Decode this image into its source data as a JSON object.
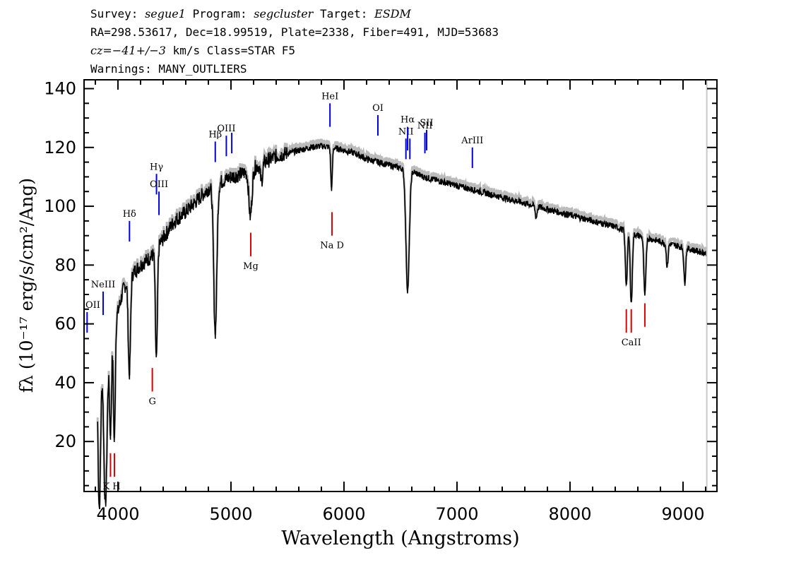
{
  "header": {
    "line1": {
      "survey_label": "Survey: ",
      "survey": "segue1",
      "program_label": " Program: ",
      "program": "segcluster",
      "target_label": " Target: ",
      "target": "ESDM"
    },
    "line2": "RA=298.53617, Dec=18.99519, Plate=2338, Fiber=491, MJD=53683",
    "line3": {
      "cz": "cz=−41+/−3",
      "rest": " km/s Class=STAR F5"
    },
    "line4": "Warnings: MANY_OUTLIERS"
  },
  "chart_data": {
    "type": "line",
    "xlabel": "Wavelength (Angstroms)",
    "ylabel": "fλ (10⁻¹⁷ erg/s/cm²/Ang)",
    "xlim": [
      3700,
      9300
    ],
    "ylim": [
      3,
      143
    ],
    "x_ticks": [
      4000,
      5000,
      6000,
      7000,
      8000,
      9000
    ],
    "y_ticks": [
      20,
      40,
      60,
      80,
      100,
      120,
      140
    ],
    "colors": {
      "spectrum": "#000000",
      "error": "#bbbbbb",
      "emission": "#0000dd",
      "absorption": "#dd0000"
    },
    "continuum": [
      [
        3820,
        52
      ],
      [
        3900,
        55
      ],
      [
        3950,
        58
      ],
      [
        4000,
        64
      ],
      [
        4050,
        72
      ],
      [
        4100,
        76
      ],
      [
        4200,
        80
      ],
      [
        4300,
        83
      ],
      [
        4400,
        89
      ],
      [
        4500,
        95
      ],
      [
        4600,
        98
      ],
      [
        4700,
        102
      ],
      [
        4800,
        106
      ],
      [
        4900,
        108
      ],
      [
        5000,
        110
      ],
      [
        5100,
        111
      ],
      [
        5200,
        113
      ],
      [
        5300,
        115
      ],
      [
        5400,
        117
      ],
      [
        5500,
        118
      ],
      [
        5600,
        119
      ],
      [
        5700,
        120
      ],
      [
        5800,
        120.5
      ],
      [
        5900,
        120
      ],
      [
        6000,
        119
      ],
      [
        6100,
        118
      ],
      [
        6200,
        116
      ],
      [
        6300,
        115
      ],
      [
        6400,
        114
      ],
      [
        6500,
        113
      ],
      [
        6600,
        112
      ],
      [
        6700,
        110
      ],
      [
        6800,
        109
      ],
      [
        6900,
        108
      ],
      [
        7000,
        107
      ],
      [
        7200,
        105
      ],
      [
        7400,
        103
      ],
      [
        7600,
        101
      ],
      [
        7800,
        99
      ],
      [
        8000,
        97
      ],
      [
        8200,
        95
      ],
      [
        8400,
        93
      ],
      [
        8600,
        90
      ],
      [
        8800,
        88
      ],
      [
        9000,
        86
      ],
      [
        9200,
        84
      ]
    ],
    "absorption_features": [
      [
        3835,
        55,
        12
      ],
      [
        3889,
        56,
        15
      ],
      [
        3934,
        34,
        9
      ],
      [
        3968,
        40,
        8
      ],
      [
        4101,
        33,
        10
      ],
      [
        4340,
        38,
        9
      ],
      [
        4861,
        50,
        14
      ],
      [
        5172,
        16,
        14
      ],
      [
        5270,
        6,
        10
      ],
      [
        5890,
        14,
        7
      ],
      [
        6563,
        41,
        15
      ],
      [
        7700,
        4,
        8
      ],
      [
        8498,
        18,
        9
      ],
      [
        8542,
        24,
        9
      ],
      [
        8662,
        20,
        9
      ],
      [
        8860,
        8,
        8
      ],
      [
        9015,
        12,
        8
      ]
    ],
    "emission_lines": [
      {
        "label": "OII",
        "wavelength": 3727,
        "y": [
          57,
          64
        ]
      },
      {
        "label": "NeIII",
        "wavelength": 3869,
        "y": [
          63,
          71
        ]
      },
      {
        "label": "Hδ",
        "wavelength": 4102,
        "y": [
          88,
          95
        ]
      },
      {
        "label": "Hγ",
        "wavelength": 4341,
        "y": [
          104,
          111
        ]
      },
      {
        "label": "OIII",
        "wavelength": 4363,
        "y": [
          97,
          105
        ]
      },
      {
        "label": "Hβ",
        "wavelength": 4861,
        "y": [
          115,
          122
        ]
      },
      {
        "label": "OIII",
        "wavelength": 4959,
        "y": [
          117,
          124
        ]
      },
      {
        "label": "",
        "wavelength": 5007,
        "y": [
          118,
          125
        ]
      },
      {
        "label": "HeI",
        "wavelength": 5876,
        "y": [
          127,
          135
        ]
      },
      {
        "label": "OI",
        "wavelength": 6300,
        "y": [
          124,
          131
        ]
      },
      {
        "label": "NII",
        "wavelength": 6548,
        "y": [
          116,
          123
        ]
      },
      {
        "label": "Hα",
        "wavelength": 6563,
        "y": [
          119,
          127
        ]
      },
      {
        "label": "",
        "wavelength": 6583,
        "y": [
          116,
          123
        ]
      },
      {
        "label": "NII",
        "wavelength": 6716,
        "y": [
          118,
          125
        ]
      },
      {
        "label": "SII",
        "wavelength": 6731,
        "y": [
          119,
          126
        ]
      },
      {
        "label": "ArIII",
        "wavelength": 7136,
        "y": [
          113,
          120
        ]
      }
    ],
    "absorption_lines": [
      {
        "label": "",
        "wavelength": 3934,
        "y": [
          8,
          16
        ]
      },
      {
        "label": "K H",
        "wavelength": 3969,
        "y": [
          8,
          16
        ]
      },
      {
        "label": "G",
        "wavelength": 4304,
        "y": [
          37,
          45
        ]
      },
      {
        "label": "Mg",
        "wavelength": 5175,
        "y": [
          83,
          91
        ]
      },
      {
        "label": "Na D",
        "wavelength": 5894,
        "y": [
          90,
          98
        ]
      },
      {
        "label": "",
        "wavelength": 8498,
        "y": [
          57,
          65
        ]
      },
      {
        "label": "CaII",
        "wavelength": 8542,
        "y": [
          57,
          65
        ]
      },
      {
        "label": "",
        "wavelength": 8662,
        "y": [
          59,
          67
        ]
      }
    ]
  }
}
